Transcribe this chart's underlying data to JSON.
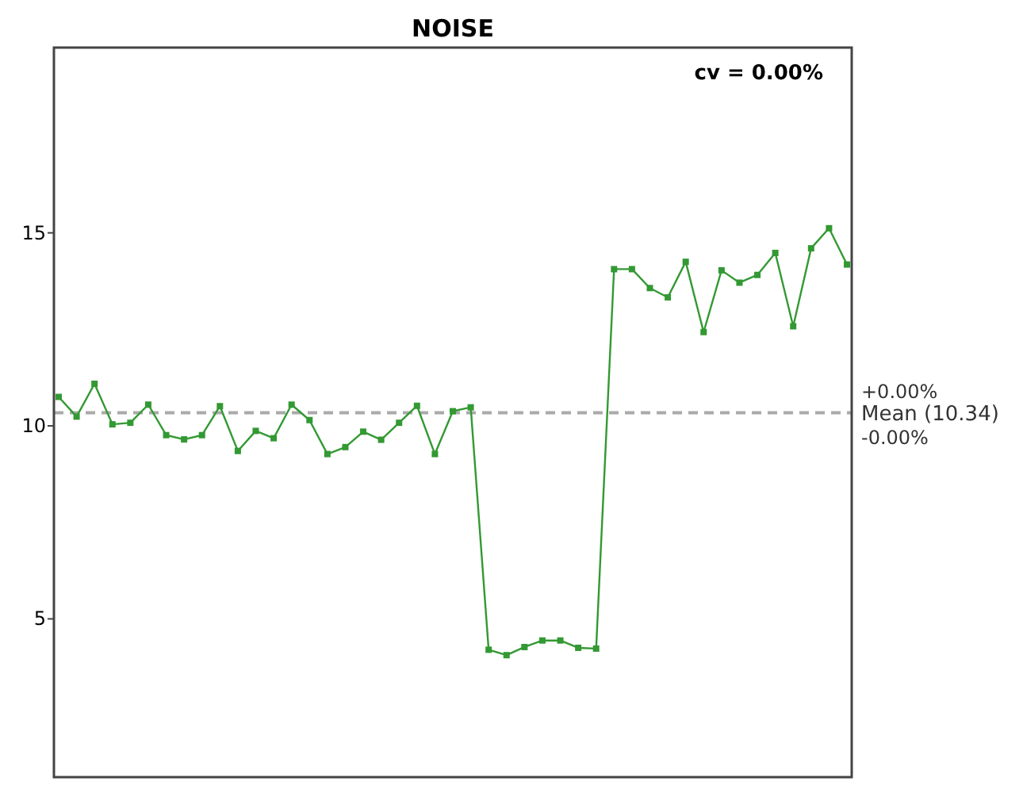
{
  "chart_data": {
    "type": "line",
    "title": "NOISE",
    "categories": [
      null,
      null,
      null,
      null,
      null,
      null,
      null,
      null,
      null,
      null,
      null,
      null,
      null,
      null,
      null,
      null,
      null,
      null,
      null,
      null,
      null,
      null,
      null,
      null,
      null,
      null,
      null,
      null,
      null,
      null,
      null,
      null,
      null,
      null,
      null,
      null,
      null,
      null,
      null,
      null,
      null,
      null,
      null,
      null,
      null
    ],
    "series": [
      {
        "color": "#339933",
        "values": [
          10.75,
          10.24,
          11.09,
          10.04,
          10.08,
          10.55,
          9.76,
          9.65,
          9.76,
          10.51,
          9.35,
          9.87,
          9.68,
          10.55,
          10.15,
          9.27,
          9.45,
          9.85,
          9.64,
          10.08,
          10.52,
          9.27,
          10.38,
          10.48,
          4.2,
          4.06,
          4.27,
          4.44,
          4.44,
          4.25,
          4.23,
          14.06,
          14.06,
          13.57,
          13.33,
          14.25,
          12.43,
          14.03,
          13.71,
          13.91,
          14.48,
          12.58,
          14.6,
          15.12,
          14.18
        ]
      }
    ],
    "ylim": [
      0.9,
      19.8
    ],
    "yticks": [
      5,
      10,
      15
    ],
    "marker": "square",
    "line_style": "solid",
    "ref_lines": [
      {
        "axis": "y",
        "value": 10.34,
        "label": "Mean (10.34)",
        "color": "#aaaaaa",
        "line_style": "dashed"
      }
    ],
    "annotations": [
      "cv = 0.00%",
      "+0.00%",
      "-0.00%"
    ]
  }
}
